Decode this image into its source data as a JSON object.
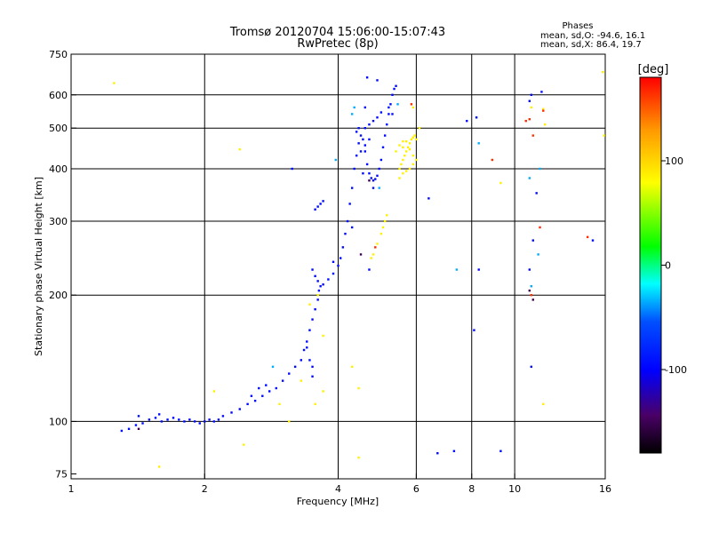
{
  "chart_data": {
    "type": "scatter",
    "title": "Tromsø 20120704 15:06:00-15:07:43",
    "subtitle": "RwPretec (8p)",
    "stats": {
      "heading": "Phases",
      "line1": "mean, sd,O: -94.6, 16.1",
      "line2": "mean, sd,X:  86.4, 19.7"
    },
    "xlabel": "Frequency [MHz]",
    "ylabel": "Stationary phase Virtual Height [km]",
    "xscale": "log",
    "yscale": "log",
    "xlim": [
      1,
      16
    ],
    "ylim": [
      73,
      750
    ],
    "xticks": [
      1,
      2,
      4,
      6,
      8,
      10,
      16
    ],
    "xtick_labels": [
      "1",
      "2",
      "4",
      "6",
      "8",
      "10",
      "16"
    ],
    "yticks": [
      75,
      100,
      200,
      300,
      400,
      500,
      600,
      750
    ],
    "ytick_labels": [
      "75",
      "100",
      "200",
      "300",
      "400",
      "500",
      "600",
      "750"
    ],
    "colorbar": {
      "label": "[deg]",
      "range": [
        -180,
        180
      ],
      "ticks": [
        100,
        0,
        -100
      ],
      "tick_labels": [
        "100",
        "0",
        "-100"
      ]
    },
    "series": [
      {
        "name": "O-mode trace (blue)",
        "phase_deg": -95,
        "points": [
          [
            1.35,
            96
          ],
          [
            1.4,
            98
          ],
          [
            1.45,
            99
          ],
          [
            1.5,
            101
          ],
          [
            1.55,
            102
          ],
          [
            1.6,
            100
          ],
          [
            1.65,
            101
          ],
          [
            1.7,
            102
          ],
          [
            1.75,
            101
          ],
          [
            1.8,
            100
          ],
          [
            1.85,
            101
          ],
          [
            1.9,
            100
          ],
          [
            1.95,
            99
          ],
          [
            2.0,
            100
          ],
          [
            2.05,
            101
          ],
          [
            2.1,
            100
          ],
          [
            2.15,
            101
          ],
          [
            2.2,
            103
          ],
          [
            2.3,
            105
          ],
          [
            2.4,
            107
          ],
          [
            2.5,
            110
          ],
          [
            2.6,
            112
          ],
          [
            2.7,
            115
          ],
          [
            2.8,
            118
          ],
          [
            2.9,
            120
          ],
          [
            3.0,
            125
          ],
          [
            3.1,
            130
          ],
          [
            3.2,
            135
          ],
          [
            3.3,
            140
          ],
          [
            3.35,
            148
          ],
          [
            3.4,
            155
          ],
          [
            3.45,
            165
          ],
          [
            3.5,
            175
          ],
          [
            3.55,
            185
          ],
          [
            3.6,
            195
          ],
          [
            3.62,
            205
          ],
          [
            3.65,
            210
          ],
          [
            3.7,
            212
          ],
          [
            3.8,
            218
          ],
          [
            3.9,
            225
          ],
          [
            4.0,
            235
          ],
          [
            4.05,
            245
          ],
          [
            4.1,
            260
          ],
          [
            4.15,
            280
          ],
          [
            4.2,
            300
          ],
          [
            4.25,
            330
          ],
          [
            4.3,
            360
          ],
          [
            4.35,
            400
          ],
          [
            4.4,
            430
          ],
          [
            4.45,
            460
          ],
          [
            4.5,
            480
          ],
          [
            4.55,
            470
          ],
          [
            4.6,
            440
          ],
          [
            4.65,
            410
          ],
          [
            4.7,
            390
          ],
          [
            4.75,
            380
          ],
          [
            4.8,
            375
          ],
          [
            4.85,
            378
          ],
          [
            4.9,
            385
          ],
          [
            4.95,
            400
          ],
          [
            5.0,
            420
          ],
          [
            5.05,
            450
          ],
          [
            5.1,
            480
          ],
          [
            5.15,
            510
          ],
          [
            5.2,
            540
          ],
          [
            5.25,
            570
          ],
          [
            5.3,
            600
          ],
          [
            5.35,
            620
          ],
          [
            5.4,
            630
          ],
          [
            4.6,
            500
          ],
          [
            4.7,
            510
          ],
          [
            4.8,
            520
          ],
          [
            4.9,
            530
          ],
          [
            5.0,
            545
          ],
          [
            4.5,
            440
          ],
          [
            4.6,
            455
          ],
          [
            4.7,
            470
          ],
          [
            3.55,
            320
          ],
          [
            3.6,
            325
          ],
          [
            3.65,
            330
          ],
          [
            3.7,
            335
          ],
          [
            3.5,
            230
          ],
          [
            3.55,
            222
          ],
          [
            3.6,
            216
          ],
          [
            3.4,
            150
          ],
          [
            3.45,
            140
          ],
          [
            3.5,
            135
          ],
          [
            3.5,
            128
          ],
          [
            1.3,
            95
          ],
          [
            1.42,
            103
          ],
          [
            1.58,
            104
          ],
          [
            2.65,
            120
          ],
          [
            2.75,
            122
          ],
          [
            2.55,
            115
          ],
          [
            3.15,
            400
          ],
          [
            4.65,
            660
          ],
          [
            4.9,
            650
          ],
          [
            5.2,
            560
          ],
          [
            5.3,
            540
          ],
          [
            4.45,
            500
          ],
          [
            4.6,
            560
          ],
          [
            6.4,
            340
          ],
          [
            6.7,
            84
          ],
          [
            7.3,
            85
          ],
          [
            7.8,
            520
          ],
          [
            8.2,
            530
          ],
          [
            8.3,
            230
          ],
          [
            9.3,
            85
          ],
          [
            8.1,
            165
          ],
          [
            10.8,
            580
          ],
          [
            10.9,
            600
          ],
          [
            11.5,
            610
          ],
          [
            11.2,
            350
          ],
          [
            11.0,
            270
          ],
          [
            10.8,
            230
          ],
          [
            10.9,
            135
          ],
          [
            15.0,
            270
          ],
          [
            4.4,
            490
          ],
          [
            4.55,
            390
          ],
          [
            4.8,
            360
          ],
          [
            4.3,
            290
          ],
          [
            3.9,
            240
          ],
          [
            4.7,
            230
          ]
        ]
      },
      {
        "name": "X-mode trace (yellow)",
        "phase_deg": 86,
        "points": [
          [
            5.5,
            400
          ],
          [
            5.55,
            410
          ],
          [
            5.6,
            420
          ],
          [
            5.65,
            430
          ],
          [
            5.7,
            440
          ],
          [
            5.75,
            450
          ],
          [
            5.8,
            460
          ],
          [
            5.85,
            470
          ],
          [
            5.9,
            475
          ],
          [
            5.95,
            480
          ],
          [
            6.0,
            470
          ],
          [
            5.6,
            450
          ],
          [
            5.7,
            465
          ],
          [
            5.8,
            445
          ],
          [
            5.9,
            430
          ],
          [
            6.0,
            420
          ],
          [
            5.5,
            380
          ],
          [
            5.6,
            390
          ],
          [
            5.7,
            395
          ],
          [
            5.8,
            400
          ],
          [
            5.9,
            410
          ],
          [
            5.4,
            440
          ],
          [
            5.5,
            455
          ],
          [
            5.6,
            465
          ],
          [
            4.8,
            250
          ],
          [
            4.9,
            265
          ],
          [
            5.0,
            280
          ],
          [
            5.05,
            290
          ],
          [
            5.1,
            300
          ],
          [
            5.15,
            310
          ],
          [
            4.75,
            245
          ],
          [
            1.25,
            640
          ],
          [
            2.4,
            445
          ],
          [
            1.58,
            78
          ],
          [
            3.7,
            118
          ],
          [
            3.1,
            100
          ],
          [
            3.55,
            110
          ],
          [
            3.3,
            125
          ],
          [
            2.95,
            110
          ],
          [
            4.45,
            82
          ],
          [
            5.9,
            560
          ],
          [
            6.1,
            500
          ],
          [
            10.9,
            560
          ],
          [
            11.6,
            555
          ],
          [
            11.6,
            110
          ],
          [
            15.8,
            680
          ],
          [
            15.9,
            480
          ],
          [
            9.3,
            370
          ],
          [
            11.7,
            510
          ],
          [
            3.6,
            200
          ],
          [
            3.45,
            190
          ],
          [
            3.7,
            160
          ],
          [
            2.1,
            118
          ],
          [
            2.45,
            88
          ],
          [
            4.3,
            135
          ],
          [
            4.45,
            120
          ]
        ]
      },
      {
        "name": "Cyan points",
        "phase_deg": -35,
        "points": [
          [
            2.85,
            135
          ],
          [
            4.3,
            540
          ],
          [
            4.35,
            560
          ],
          [
            3.95,
            420
          ],
          [
            7.4,
            230
          ],
          [
            11.4,
            400
          ],
          [
            11.3,
            250
          ],
          [
            10.8,
            380
          ],
          [
            10.9,
            210
          ],
          [
            8.3,
            460
          ],
          [
            5.45,
            570
          ],
          [
            4.95,
            360
          ]
        ]
      },
      {
        "name": "Red/orange points",
        "phase_deg": 165,
        "points": [
          [
            5.85,
            570
          ],
          [
            8.9,
            420
          ],
          [
            10.6,
            520
          ],
          [
            11.0,
            480
          ],
          [
            14.6,
            275
          ],
          [
            11.4,
            290
          ],
          [
            10.8,
            525
          ],
          [
            10.9,
            200
          ],
          [
            11.6,
            550
          ],
          [
            4.85,
            260
          ]
        ]
      },
      {
        "name": "Purple points",
        "phase_deg": -150,
        "points": [
          [
            4.5,
            250
          ],
          [
            10.8,
            205
          ],
          [
            11.0,
            195
          ],
          [
            4.7,
            375
          ],
          [
            1.42,
            96
          ]
        ]
      }
    ]
  }
}
